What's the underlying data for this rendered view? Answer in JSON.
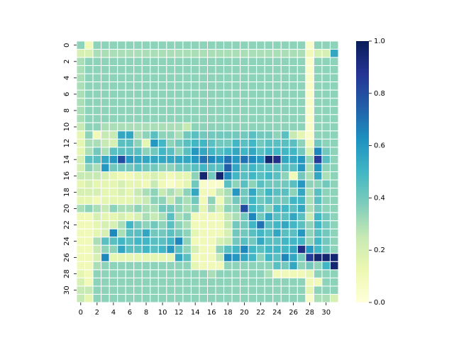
{
  "chart_data": {
    "type": "heatmap",
    "title": "",
    "xlabel": "",
    "ylabel": "",
    "n_rows": 32,
    "n_cols": 32,
    "x_ticks": [
      "0",
      "2",
      "4",
      "6",
      "8",
      "10",
      "12",
      "14",
      "16",
      "18",
      "20",
      "22",
      "24",
      "26",
      "28",
      "30"
    ],
    "y_ticks": [
      "0",
      "2",
      "4",
      "6",
      "8",
      "10",
      "12",
      "14",
      "16",
      "18",
      "20",
      "22",
      "24",
      "26",
      "28",
      "30"
    ],
    "colorbar": {
      "ticks": [
        "0.0",
        "0.2",
        "0.4",
        "0.6",
        "0.8",
        "1.0"
      ],
      "vmin": 0.0,
      "vmax": 1.0,
      "colormap": "YlGnBu"
    },
    "grid": "white cell borders",
    "values": [
      [
        0.35,
        0.1,
        0.35,
        0.35,
        0.35,
        0.35,
        0.35,
        0.35,
        0.35,
        0.35,
        0.35,
        0.35,
        0.35,
        0.35,
        0.35,
        0.35,
        0.35,
        0.35,
        0.35,
        0.35,
        0.35,
        0.35,
        0.35,
        0.35,
        0.35,
        0.35,
        0.35,
        0.35,
        0.05,
        0.35,
        0.35,
        0.35
      ],
      [
        0.2,
        0.2,
        0.3,
        0.3,
        0.3,
        0.3,
        0.3,
        0.3,
        0.3,
        0.3,
        0.3,
        0.3,
        0.3,
        0.3,
        0.3,
        0.3,
        0.3,
        0.3,
        0.3,
        0.3,
        0.3,
        0.3,
        0.3,
        0.3,
        0.3,
        0.3,
        0.3,
        0.3,
        0.1,
        0.2,
        0.2,
        0.55
      ],
      [
        0.3,
        0.35,
        0.35,
        0.35,
        0.35,
        0.35,
        0.35,
        0.35,
        0.35,
        0.35,
        0.35,
        0.35,
        0.35,
        0.35,
        0.35,
        0.35,
        0.35,
        0.35,
        0.35,
        0.35,
        0.35,
        0.35,
        0.35,
        0.35,
        0.35,
        0.35,
        0.35,
        0.35,
        0.05,
        0.35,
        0.35,
        0.35
      ],
      [
        0.3,
        0.35,
        0.35,
        0.35,
        0.35,
        0.35,
        0.35,
        0.35,
        0.35,
        0.35,
        0.35,
        0.35,
        0.35,
        0.35,
        0.35,
        0.35,
        0.35,
        0.35,
        0.35,
        0.35,
        0.35,
        0.35,
        0.35,
        0.35,
        0.35,
        0.35,
        0.35,
        0.35,
        0.05,
        0.35,
        0.35,
        0.35
      ],
      [
        0.3,
        0.35,
        0.35,
        0.35,
        0.35,
        0.35,
        0.35,
        0.35,
        0.35,
        0.35,
        0.35,
        0.35,
        0.35,
        0.35,
        0.35,
        0.35,
        0.35,
        0.35,
        0.35,
        0.35,
        0.35,
        0.35,
        0.35,
        0.35,
        0.35,
        0.35,
        0.35,
        0.35,
        0.05,
        0.35,
        0.35,
        0.35
      ],
      [
        0.3,
        0.35,
        0.35,
        0.35,
        0.35,
        0.35,
        0.35,
        0.35,
        0.35,
        0.35,
        0.35,
        0.35,
        0.35,
        0.35,
        0.35,
        0.35,
        0.35,
        0.35,
        0.35,
        0.35,
        0.35,
        0.35,
        0.35,
        0.35,
        0.35,
        0.35,
        0.35,
        0.35,
        0.05,
        0.35,
        0.35,
        0.35
      ],
      [
        0.3,
        0.35,
        0.35,
        0.35,
        0.35,
        0.35,
        0.35,
        0.35,
        0.35,
        0.35,
        0.35,
        0.35,
        0.35,
        0.35,
        0.35,
        0.35,
        0.35,
        0.35,
        0.35,
        0.35,
        0.35,
        0.35,
        0.35,
        0.35,
        0.35,
        0.35,
        0.35,
        0.35,
        0.05,
        0.35,
        0.35,
        0.35
      ],
      [
        0.3,
        0.35,
        0.35,
        0.35,
        0.35,
        0.35,
        0.35,
        0.35,
        0.35,
        0.35,
        0.35,
        0.35,
        0.35,
        0.35,
        0.35,
        0.35,
        0.35,
        0.35,
        0.35,
        0.35,
        0.35,
        0.35,
        0.35,
        0.35,
        0.35,
        0.35,
        0.35,
        0.35,
        0.05,
        0.35,
        0.35,
        0.35
      ],
      [
        0.3,
        0.35,
        0.35,
        0.35,
        0.35,
        0.35,
        0.35,
        0.35,
        0.35,
        0.35,
        0.35,
        0.35,
        0.35,
        0.35,
        0.35,
        0.35,
        0.35,
        0.35,
        0.35,
        0.35,
        0.35,
        0.35,
        0.35,
        0.35,
        0.35,
        0.35,
        0.35,
        0.35,
        0.05,
        0.35,
        0.35,
        0.35
      ],
      [
        0.3,
        0.35,
        0.35,
        0.35,
        0.35,
        0.35,
        0.35,
        0.35,
        0.35,
        0.35,
        0.35,
        0.35,
        0.35,
        0.35,
        0.35,
        0.35,
        0.35,
        0.35,
        0.35,
        0.35,
        0.35,
        0.35,
        0.35,
        0.35,
        0.35,
        0.35,
        0.35,
        0.35,
        0.05,
        0.35,
        0.35,
        0.35
      ],
      [
        0.25,
        0.35,
        0.35,
        0.3,
        0.3,
        0.3,
        0.3,
        0.3,
        0.3,
        0.3,
        0.3,
        0.3,
        0.3,
        0.25,
        0.35,
        0.35,
        0.35,
        0.35,
        0.35,
        0.35,
        0.35,
        0.35,
        0.35,
        0.35,
        0.35,
        0.35,
        0.35,
        0.35,
        0.05,
        0.35,
        0.35,
        0.35
      ],
      [
        0.15,
        0.35,
        0.1,
        0.25,
        0.25,
        0.55,
        0.55,
        0.3,
        0.35,
        0.45,
        0.35,
        0.35,
        0.3,
        0.4,
        0.45,
        0.4,
        0.4,
        0.4,
        0.4,
        0.4,
        0.4,
        0.45,
        0.4,
        0.4,
        0.35,
        0.45,
        0.25,
        0.15,
        0.05,
        0.35,
        0.35,
        0.35
      ],
      [
        0.15,
        0.3,
        0.3,
        0.25,
        0.2,
        0.45,
        0.45,
        0.35,
        0.15,
        0.6,
        0.5,
        0.35,
        0.4,
        0.45,
        0.5,
        0.5,
        0.45,
        0.4,
        0.4,
        0.5,
        0.45,
        0.5,
        0.4,
        0.45,
        0.45,
        0.45,
        0.45,
        0.35,
        0.1,
        0.4,
        0.35,
        0.35
      ],
      [
        0.15,
        0.3,
        0.4,
        0.3,
        0.45,
        0.45,
        0.45,
        0.45,
        0.35,
        0.4,
        0.5,
        0.45,
        0.35,
        0.45,
        0.6,
        0.55,
        0.5,
        0.45,
        0.5,
        0.55,
        0.5,
        0.55,
        0.45,
        0.5,
        0.5,
        0.5,
        0.5,
        0.4,
        0.2,
        0.65,
        0.4,
        0.35
      ],
      [
        0.2,
        0.45,
        0.45,
        0.55,
        0.6,
        0.8,
        0.6,
        0.55,
        0.55,
        0.55,
        0.55,
        0.55,
        0.55,
        0.55,
        0.6,
        0.7,
        0.65,
        0.6,
        0.7,
        0.6,
        0.7,
        0.65,
        0.6,
        0.95,
        0.9,
        0.55,
        0.55,
        0.6,
        0.35,
        0.85,
        0.45,
        0.35
      ],
      [
        0.2,
        0.35,
        0.3,
        0.6,
        0.4,
        0.4,
        0.4,
        0.45,
        0.4,
        0.4,
        0.35,
        0.35,
        0.4,
        0.4,
        0.45,
        0.5,
        0.45,
        0.45,
        0.75,
        0.55,
        0.45,
        0.5,
        0.45,
        0.45,
        0.45,
        0.45,
        0.45,
        0.6,
        0.3,
        0.6,
        0.35,
        0.35
      ],
      [
        0.25,
        0.25,
        0.25,
        0.2,
        0.15,
        0.1,
        0.1,
        0.15,
        0.15,
        0.2,
        0.15,
        0.1,
        0.15,
        0.15,
        0.35,
        0.95,
        0.4,
        0.95,
        0.65,
        0.5,
        0.45,
        0.5,
        0.45,
        0.5,
        0.45,
        0.35,
        0.1,
        0.4,
        0.3,
        0.55,
        0.3,
        0.35
      ],
      [
        0.15,
        0.2,
        0.15,
        0.15,
        0.15,
        0.2,
        0.15,
        0.15,
        0.1,
        0.25,
        0.1,
        0.05,
        0.1,
        0.15,
        0.4,
        0.05,
        0.05,
        0.05,
        0.45,
        0.35,
        0.45,
        0.35,
        0.45,
        0.4,
        0.4,
        0.4,
        0.45,
        0.6,
        0.35,
        0.35,
        0.4,
        0.35
      ],
      [
        0.2,
        0.2,
        0.2,
        0.15,
        0.15,
        0.2,
        0.15,
        0.25,
        0.3,
        0.35,
        0.25,
        0.3,
        0.25,
        0.35,
        0.55,
        0.1,
        0.1,
        0.25,
        0.3,
        0.6,
        0.4,
        0.55,
        0.4,
        0.5,
        0.45,
        0.45,
        0.35,
        0.55,
        0.3,
        0.45,
        0.35,
        0.35
      ],
      [
        0.15,
        0.15,
        0.1,
        0.15,
        0.15,
        0.15,
        0.15,
        0.2,
        0.25,
        0.35,
        0.35,
        0.25,
        0.35,
        0.3,
        0.4,
        0.1,
        0.35,
        0.1,
        0.3,
        0.4,
        0.4,
        0.5,
        0.4,
        0.45,
        0.4,
        0.4,
        0.5,
        0.5,
        0.3,
        0.45,
        0.35,
        0.35
      ],
      [
        0.3,
        0.35,
        0.3,
        0.25,
        0.35,
        0.3,
        0.3,
        0.35,
        0.3,
        0.3,
        0.4,
        0.4,
        0.35,
        0.3,
        0.35,
        0.15,
        0.3,
        0.2,
        0.35,
        0.35,
        0.8,
        0.5,
        0.45,
        0.35,
        0.5,
        0.5,
        0.45,
        0.55,
        0.3,
        0.4,
        0.35,
        0.35
      ],
      [
        0.1,
        0.1,
        0.2,
        0.15,
        0.15,
        0.2,
        0.15,
        0.2,
        0.3,
        0.25,
        0.3,
        0.45,
        0.3,
        0.35,
        0.1,
        0.1,
        0.1,
        0.1,
        0.25,
        0.3,
        0.4,
        0.65,
        0.4,
        0.55,
        0.45,
        0.45,
        0.55,
        0.45,
        0.25,
        0.5,
        0.4,
        0.35
      ],
      [
        0.1,
        0.1,
        0.15,
        0.2,
        0.2,
        0.3,
        0.5,
        0.4,
        0.35,
        0.4,
        0.35,
        0.45,
        0.35,
        0.3,
        0.1,
        0.1,
        0.1,
        0.1,
        0.25,
        0.4,
        0.4,
        0.5,
        0.7,
        0.45,
        0.5,
        0.55,
        0.5,
        0.45,
        0.35,
        0.5,
        0.4,
        0.35
      ],
      [
        0.1,
        0.1,
        0.15,
        0.2,
        0.65,
        0.3,
        0.45,
        0.45,
        0.55,
        0.4,
        0.4,
        0.45,
        0.4,
        0.35,
        0.15,
        0.1,
        0.1,
        0.1,
        0.2,
        0.4,
        0.4,
        0.45,
        0.5,
        0.45,
        0.55,
        0.45,
        0.45,
        0.6,
        0.35,
        0.45,
        0.4,
        0.35
      ],
      [
        0.1,
        0.1,
        0.3,
        0.45,
        0.45,
        0.5,
        0.45,
        0.5,
        0.5,
        0.45,
        0.45,
        0.5,
        0.65,
        0.35,
        0.1,
        0.1,
        0.1,
        0.2,
        0.25,
        0.4,
        0.45,
        0.4,
        0.55,
        0.45,
        0.45,
        0.5,
        0.5,
        0.5,
        0.35,
        0.5,
        0.4,
        0.35
      ],
      [
        0.1,
        0.1,
        0.25,
        0.35,
        0.35,
        0.55,
        0.45,
        0.45,
        0.5,
        0.45,
        0.5,
        0.6,
        0.45,
        0.35,
        0.2,
        0.1,
        0.1,
        0.35,
        0.45,
        0.5,
        0.65,
        0.5,
        0.45,
        0.5,
        0.5,
        0.5,
        0.55,
        0.9,
        0.6,
        0.5,
        0.4,
        0.35
      ],
      [
        0.1,
        0.1,
        0.2,
        0.65,
        0.15,
        0.15,
        0.15,
        0.15,
        0.15,
        0.15,
        0.15,
        0.15,
        0.55,
        0.45,
        0.1,
        0.1,
        0.1,
        0.25,
        0.65,
        0.6,
        0.55,
        0.5,
        0.35,
        0.5,
        0.45,
        0.65,
        0.55,
        0.4,
        0.85,
        0.95,
        0.95,
        0.95
      ],
      [
        0.1,
        0.1,
        0.3,
        0.35,
        0.35,
        0.35,
        0.35,
        0.35,
        0.35,
        0.35,
        0.35,
        0.35,
        0.35,
        0.35,
        0.15,
        0.1,
        0.1,
        0.1,
        0.35,
        0.35,
        0.35,
        0.35,
        0.35,
        0.35,
        0.45,
        0.4,
        0.55,
        0.35,
        0.4,
        0.35,
        0.5,
        0.95
      ],
      [
        0.15,
        0.1,
        0.35,
        0.35,
        0.35,
        0.35,
        0.35,
        0.35,
        0.35,
        0.35,
        0.35,
        0.35,
        0.35,
        0.35,
        0.35,
        0.35,
        0.3,
        0.35,
        0.35,
        0.35,
        0.35,
        0.35,
        0.35,
        0.3,
        0.1,
        0.1,
        0.1,
        0.1,
        0.15,
        0.35,
        0.35,
        0.35
      ],
      [
        0.2,
        0.1,
        0.35,
        0.35,
        0.35,
        0.35,
        0.35,
        0.35,
        0.35,
        0.35,
        0.35,
        0.35,
        0.35,
        0.35,
        0.35,
        0.35,
        0.35,
        0.35,
        0.35,
        0.35,
        0.35,
        0.35,
        0.35,
        0.35,
        0.35,
        0.35,
        0.35,
        0.35,
        0.1,
        0.1,
        0.35,
        0.35
      ],
      [
        0.25,
        0.25,
        0.35,
        0.35,
        0.35,
        0.35,
        0.35,
        0.35,
        0.35,
        0.35,
        0.35,
        0.35,
        0.35,
        0.35,
        0.35,
        0.35,
        0.35,
        0.35,
        0.35,
        0.35,
        0.35,
        0.35,
        0.35,
        0.35,
        0.35,
        0.35,
        0.35,
        0.35,
        0.15,
        0.35,
        0.35,
        0.35
      ],
      [
        0.25,
        0.15,
        0.35,
        0.35,
        0.35,
        0.35,
        0.35,
        0.35,
        0.35,
        0.35,
        0.35,
        0.35,
        0.35,
        0.35,
        0.35,
        0.35,
        0.35,
        0.35,
        0.35,
        0.35,
        0.35,
        0.35,
        0.35,
        0.35,
        0.35,
        0.35,
        0.35,
        0.35,
        0.05,
        0.3,
        0.3,
        0.2
      ]
    ]
  }
}
